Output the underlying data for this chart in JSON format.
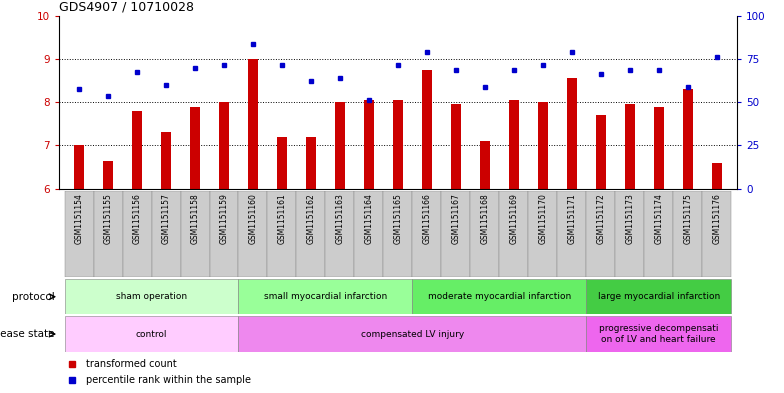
{
  "title": "GDS4907 / 10710028",
  "samples": [
    "GSM1151154",
    "GSM1151155",
    "GSM1151156",
    "GSM1151157",
    "GSM1151158",
    "GSM1151159",
    "GSM1151160",
    "GSM1151161",
    "GSM1151162",
    "GSM1151163",
    "GSM1151164",
    "GSM1151165",
    "GSM1151166",
    "GSM1151167",
    "GSM1151168",
    "GSM1151169",
    "GSM1151170",
    "GSM1151171",
    "GSM1151172",
    "GSM1151173",
    "GSM1151174",
    "GSM1151175",
    "GSM1151176"
  ],
  "bar_values": [
    7.0,
    6.65,
    7.8,
    7.3,
    7.9,
    8.0,
    9.0,
    7.2,
    7.2,
    8.0,
    8.05,
    8.05,
    8.75,
    7.95,
    7.1,
    8.05,
    8.0,
    8.55,
    7.7,
    7.95,
    7.9,
    8.3,
    6.6
  ],
  "dot_values": [
    8.3,
    8.15,
    8.7,
    8.4,
    8.8,
    8.85,
    9.35,
    8.85,
    8.5,
    8.55,
    8.05,
    8.85,
    9.15,
    8.75,
    8.35,
    8.75,
    8.85,
    9.15,
    8.65,
    8.75,
    8.75,
    8.35,
    9.05
  ],
  "ylim_left": [
    6,
    10
  ],
  "ylim_right": [
    0,
    100
  ],
  "yticks_left": [
    6,
    7,
    8,
    9,
    10
  ],
  "yticks_right": [
    0,
    25,
    50,
    75,
    100
  ],
  "bar_color": "#cc0000",
  "dot_color": "#0000cc",
  "protocol_groups": [
    {
      "label": "sham operation",
      "start": 0,
      "end": 5,
      "color": "#ccffcc"
    },
    {
      "label": "small myocardial infarction",
      "start": 6,
      "end": 11,
      "color": "#99ff99"
    },
    {
      "label": "moderate myocardial infarction",
      "start": 12,
      "end": 17,
      "color": "#66ee66"
    },
    {
      "label": "large myocardial infarction",
      "start": 18,
      "end": 22,
      "color": "#44cc44"
    }
  ],
  "disease_groups": [
    {
      "label": "control",
      "start": 0,
      "end": 5,
      "color": "#ffccff"
    },
    {
      "label": "compensated LV injury",
      "start": 6,
      "end": 17,
      "color": "#ee88ee"
    },
    {
      "label": "progressive decompensati\non of LV and heart failure",
      "start": 18,
      "end": 22,
      "color": "#ee66ee"
    }
  ],
  "legend_bar_label": "transformed count",
  "legend_dot_label": "percentile rank within the sample",
  "protocol_label": "protocol",
  "disease_label": "disease state",
  "xticklabel_bg": "#cccccc",
  "grid_color": "black",
  "grid_linestyle": ":",
  "grid_linewidth": 0.7
}
